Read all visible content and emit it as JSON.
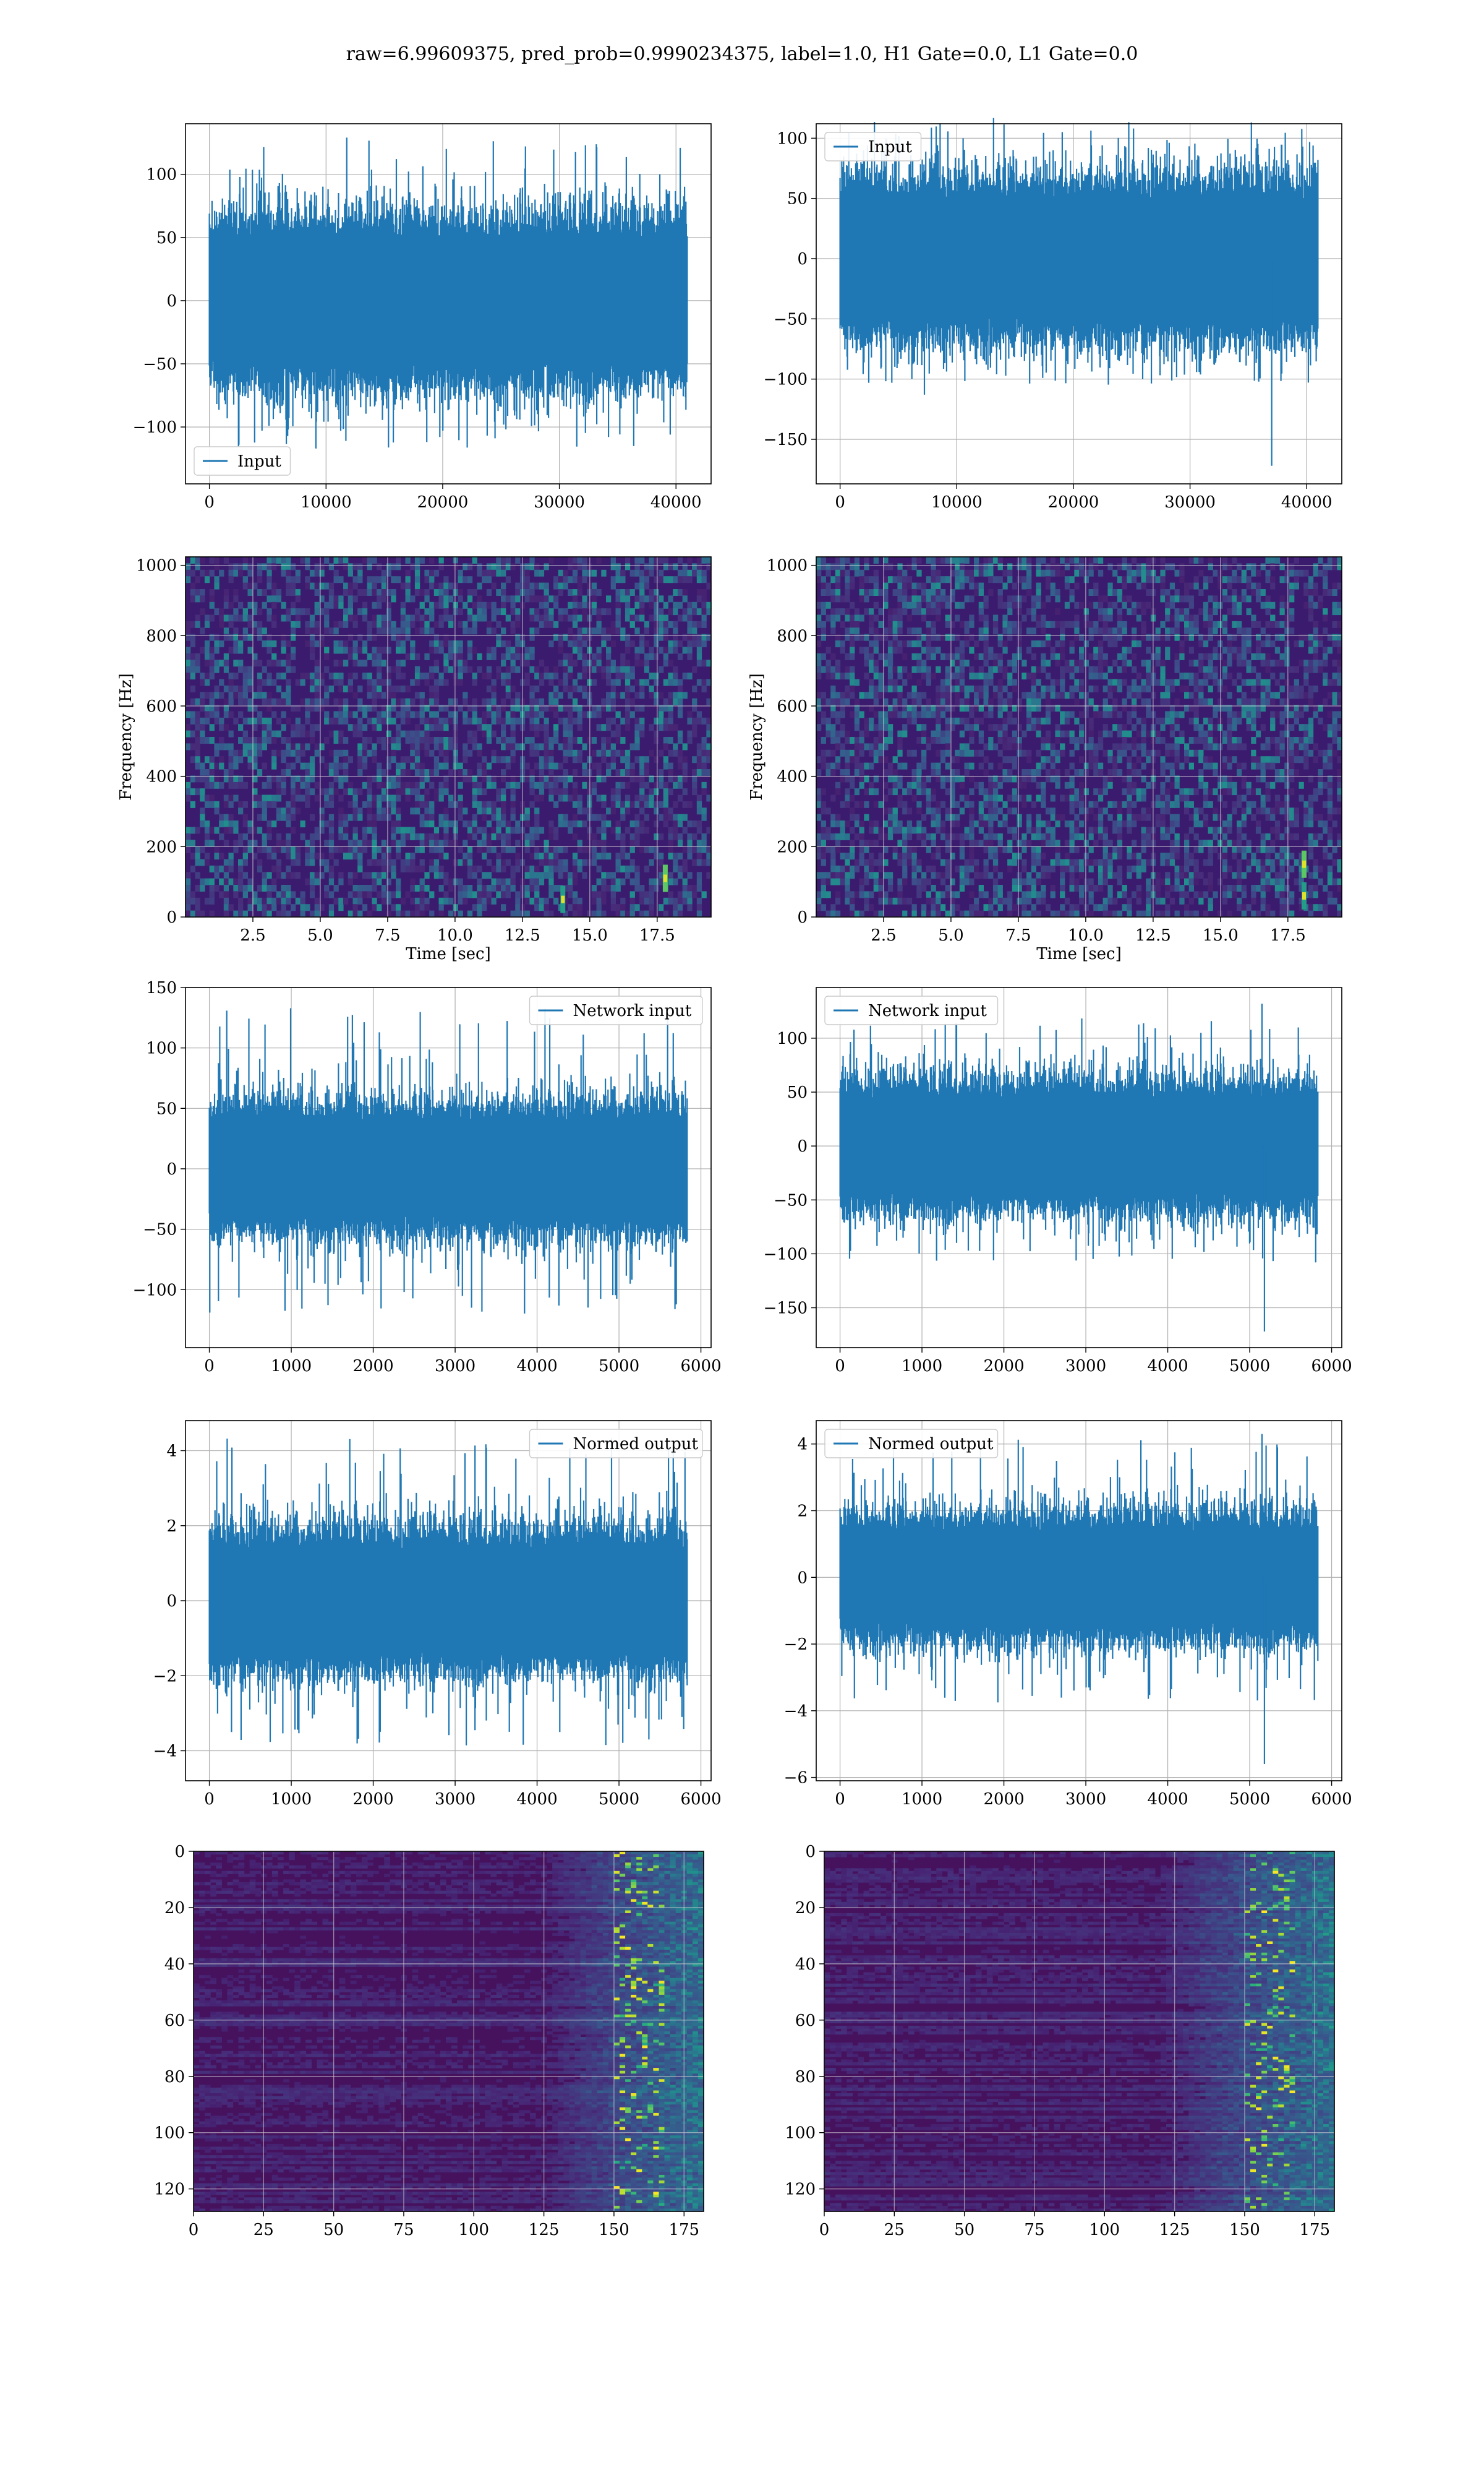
{
  "figure": {
    "title": "raw=6.99609375, pred_prob=0.9990234375, label=1.0, H1 Gate=0.0, L1 Gate=0.0"
  },
  "colors": {
    "line": "#1f77b4",
    "grid": "#b0b0b0",
    "viridis_dark": "#440154"
  },
  "chart_data": [
    {
      "id": "input-left",
      "type": "line",
      "legend": "Input",
      "legend_loc": "lower-left",
      "x_range": [
        0,
        40960
      ],
      "xlim": [
        -2048,
        43008
      ],
      "ylim": [
        -145,
        140
      ],
      "xticks": [
        0,
        10000,
        20000,
        30000,
        40000
      ],
      "yticks": [
        -100,
        -50,
        0,
        50,
        100
      ],
      "envelope_core": 50,
      "envelope_peak": 130,
      "grid": true
    },
    {
      "id": "input-right",
      "type": "line",
      "legend": "Input",
      "legend_loc": "upper-left",
      "x_range": [
        0,
        40960
      ],
      "xlim": [
        -2048,
        43008
      ],
      "ylim": [
        -187,
        112
      ],
      "xticks": [
        0,
        10000,
        20000,
        30000,
        40000
      ],
      "yticks": [
        -150,
        -100,
        -50,
        0,
        50,
        100
      ],
      "envelope_core": 50,
      "envelope_peak": 115,
      "spikes": [
        {
          "x": 37000,
          "y": -172
        }
      ],
      "grid": true
    },
    {
      "id": "spec-left",
      "type": "heatmap",
      "xlabel": "Time [sec]",
      "ylabel": "Frequency [Hz]",
      "xlim": [
        0,
        19.5
      ],
      "ylim": [
        0,
        1024
      ],
      "xticks": [
        2.5,
        5.0,
        7.5,
        10.0,
        12.5,
        15.0,
        17.5
      ],
      "yticks": [
        0,
        200,
        400,
        600,
        800,
        1000
      ],
      "highlights": [
        {
          "t": 14.0,
          "f": 50
        },
        {
          "t": 17.8,
          "f": 110
        }
      ],
      "grid": true
    },
    {
      "id": "spec-right",
      "type": "heatmap",
      "xlabel": "Time [sec]",
      "ylabel": "Frequency [Hz]",
      "xlim": [
        0,
        19.5
      ],
      "ylim": [
        0,
        1024
      ],
      "xticks": [
        2.5,
        5.0,
        7.5,
        10.0,
        12.5,
        15.0,
        17.5
      ],
      "yticks": [
        0,
        200,
        400,
        600,
        800,
        1000
      ],
      "highlights": [
        {
          "t": 18.1,
          "f": 60
        },
        {
          "t": 18.1,
          "f": 150
        }
      ],
      "grid": true
    },
    {
      "id": "netin-left",
      "type": "line",
      "legend": "Network input",
      "legend_loc": "upper-right",
      "x_range": [
        0,
        5832
      ],
      "xlim": [
        -291,
        6124
      ],
      "ylim": [
        -148,
        150
      ],
      "xticks": [
        0,
        1000,
        2000,
        3000,
        4000,
        5000,
        6000
      ],
      "yticks": [
        -100,
        -50,
        0,
        50,
        100,
        150
      ],
      "envelope_core": 40,
      "envelope_peak": 135,
      "grid": true
    },
    {
      "id": "netin-right",
      "type": "line",
      "legend": "Network input",
      "legend_loc": "upper-left",
      "x_range": [
        0,
        5832
      ],
      "xlim": [
        -291,
        6124
      ],
      "ylim": [
        -187,
        147
      ],
      "xticks": [
        0,
        1000,
        2000,
        3000,
        4000,
        5000,
        6000
      ],
      "yticks": [
        -150,
        -100,
        -50,
        0,
        50,
        100
      ],
      "envelope_core": 45,
      "envelope_peak": 120,
      "spikes": [
        {
          "x": 5180,
          "y": -172
        },
        {
          "x": 5150,
          "y": 132
        }
      ],
      "grid": true
    },
    {
      "id": "normed-left",
      "type": "line",
      "legend": "Normed output",
      "legend_loc": "upper-right",
      "x_range": [
        0,
        5832
      ],
      "xlim": [
        -291,
        6124
      ],
      "ylim": [
        -4.8,
        4.8
      ],
      "xticks": [
        0,
        1000,
        2000,
        3000,
        4000,
        5000,
        6000
      ],
      "yticks": [
        -4,
        -2,
        0,
        2,
        4
      ],
      "envelope_core": 1.4,
      "envelope_peak": 4.4,
      "grid": true
    },
    {
      "id": "normed-right",
      "type": "line",
      "legend": "Normed output",
      "legend_loc": "upper-left",
      "x_range": [
        0,
        5832
      ],
      "xlim": [
        -291,
        6124
      ],
      "ylim": [
        -6.1,
        4.7
      ],
      "xticks": [
        0,
        1000,
        2000,
        3000,
        4000,
        5000,
        6000
      ],
      "yticks": [
        -6,
        -4,
        -2,
        0,
        2,
        4
      ],
      "envelope_core": 1.4,
      "envelope_peak": 4.2,
      "spikes": [
        {
          "x": 5180,
          "y": -5.6
        },
        {
          "x": 5150,
          "y": 4.3
        }
      ],
      "grid": true
    },
    {
      "id": "feat-left",
      "type": "heatmap",
      "xlim": [
        0,
        182
      ],
      "ylim_inverted": [
        0,
        128
      ],
      "xticks": [
        0,
        25,
        50,
        75,
        100,
        125,
        150,
        175
      ],
      "yticks": [
        0,
        20,
        40,
        60,
        80,
        100,
        120
      ],
      "active_from": 125,
      "grid": true
    },
    {
      "id": "feat-right",
      "type": "heatmap",
      "xlim": [
        0,
        182
      ],
      "ylim_inverted": [
        0,
        128
      ],
      "xticks": [
        0,
        25,
        50,
        75,
        100,
        125,
        150,
        175
      ],
      "yticks": [
        0,
        20,
        40,
        60,
        80,
        100,
        120
      ],
      "active_from": 120,
      "grid": true
    }
  ]
}
